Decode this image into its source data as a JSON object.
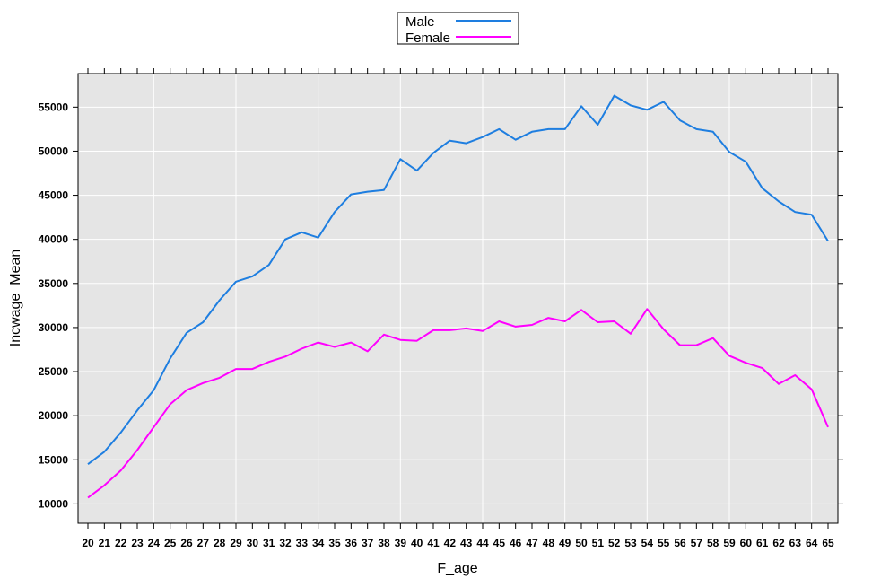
{
  "chart_data": {
    "type": "line",
    "xlabel": "F_age",
    "ylabel": "Incwage_Mean",
    "x": [
      20,
      21,
      22,
      23,
      24,
      25,
      26,
      27,
      28,
      29,
      30,
      31,
      32,
      33,
      34,
      35,
      36,
      37,
      38,
      39,
      40,
      41,
      42,
      43,
      44,
      45,
      46,
      47,
      48,
      49,
      50,
      51,
      52,
      53,
      54,
      55,
      56,
      57,
      58,
      59,
      60,
      61,
      62,
      63,
      64,
      65
    ],
    "xlim": [
      19.4,
      65.6
    ],
    "ylim": [
      7800,
      58800
    ],
    "yticks": [
      10000,
      15000,
      20000,
      25000,
      30000,
      35000,
      40000,
      45000,
      50000,
      55000
    ],
    "background": "#e5e5e5",
    "grid": true,
    "legend_position": "top-center",
    "series": [
      {
        "name": "Male",
        "color": "#1e7ee0",
        "values": [
          14500,
          15900,
          18100,
          20600,
          22900,
          26500,
          29400,
          30600,
          33100,
          35200,
          35800,
          37100,
          40000,
          40800,
          40200,
          43100,
          45100,
          45400,
          45600,
          49100,
          47800,
          49800,
          51200,
          50900,
          51600,
          52500,
          51300,
          52200,
          52500,
          52500,
          55100,
          53000,
          56300,
          55200,
          54700,
          55600,
          53500,
          52500,
          52200,
          49900,
          48800,
          45800,
          44300,
          43100,
          42800,
          39800
        ]
      },
      {
        "name": "Female",
        "color": "#ff00ff",
        "values": [
          10700,
          12100,
          13800,
          16100,
          18700,
          21300,
          22900,
          23700,
          24300,
          25300,
          25300,
          26100,
          26700,
          27600,
          28300,
          27800,
          28300,
          27300,
          29200,
          28600,
          28500,
          29700,
          29700,
          29900,
          29600,
          30700,
          30100,
          30300,
          31100,
          30700,
          32000,
          30600,
          30700,
          29300,
          32100,
          29800,
          28000,
          28000,
          28800,
          26800,
          26000,
          25400,
          23600,
          24600,
          23000,
          18700
        ]
      }
    ]
  }
}
